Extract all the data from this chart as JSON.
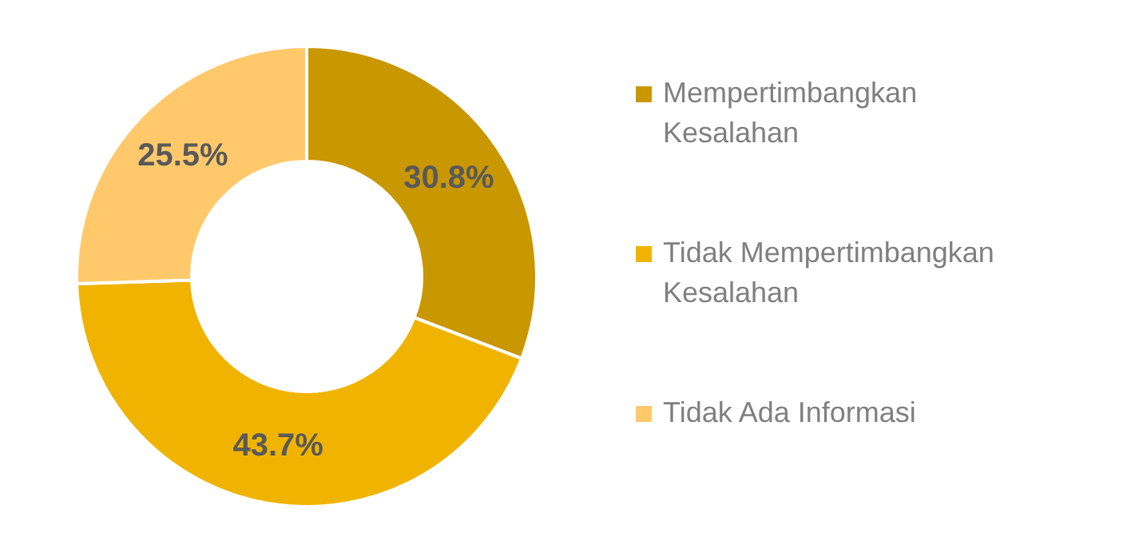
{
  "chart_data": {
    "type": "donut",
    "categories": [
      "Mempertimbangkan Kesalahan",
      "Tidak Mempertimbangkan Kesalahan",
      "Tidak Ada Informasi"
    ],
    "values": [
      30.8,
      43.7,
      25.5
    ],
    "value_labels": [
      "30.8%",
      "43.7%",
      "25.5%"
    ],
    "colors": [
      "#c99700",
      "#f0b400",
      "#ffc96b"
    ],
    "legend": "right"
  }
}
